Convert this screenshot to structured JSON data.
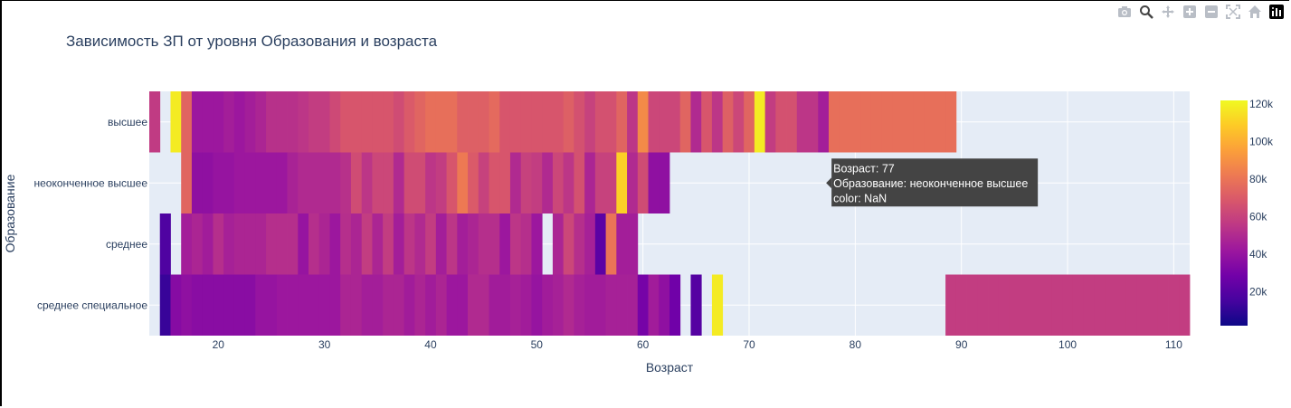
{
  "modebar": {
    "buttons": [
      "camera-icon",
      "zoom-icon",
      "pan-icon",
      "zoom-in-icon",
      "zoom-out-icon",
      "autoscale-icon",
      "reset-axes-icon",
      "plotly-logo-icon"
    ]
  },
  "colors": {
    "plot_bg": "#e5ecf6",
    "text": "#2a3f5f",
    "tooltip_bg": "#444444",
    "colorscale": [
      "#0d0887",
      "#46039f",
      "#7201a8",
      "#9c179e",
      "#bd3786",
      "#d8576b",
      "#ed7953",
      "#fb9f3a",
      "#fdca26",
      "#f0f921"
    ]
  },
  "chart_data": {
    "type": "heatmap",
    "title": "Зависимость ЗП от уровня Образования и возраста",
    "xlabel": "Возраст",
    "ylabel": "Образование",
    "x_ticks": [
      20,
      30,
      40,
      50,
      60,
      70,
      80,
      90,
      100,
      110
    ],
    "xlim": [
      13.5,
      111.5
    ],
    "categories": [
      "высшее",
      "неоконченное высшее",
      "среднее",
      "среднее специальное"
    ],
    "colorbar": {
      "range": [
        2000,
        122000
      ],
      "ticks": [
        20000,
        40000,
        60000,
        80000,
        100000,
        120000
      ],
      "tick_labels": [
        "20k",
        "40k",
        "60k",
        "80k",
        "100k",
        "120k"
      ]
    },
    "grid": true,
    "rows": [
      {
        "name": "высшее",
        "cells": [
          [
            14,
            57000
          ],
          [
            15,
            null
          ],
          [
            16,
            118000
          ],
          [
            17,
            74000
          ],
          [
            18,
            42000
          ],
          [
            19,
            42000
          ],
          [
            20,
            42000
          ],
          [
            21,
            45000
          ],
          [
            22,
            42000
          ],
          [
            23,
            45000
          ],
          [
            24,
            48000
          ],
          [
            25,
            53000
          ],
          [
            26,
            53000
          ],
          [
            27,
            53000
          ],
          [
            28,
            55000
          ],
          [
            29,
            58000
          ],
          [
            30,
            58000
          ],
          [
            31,
            63000
          ],
          [
            32,
            68000
          ],
          [
            33,
            68000
          ],
          [
            34,
            68000
          ],
          [
            35,
            68000
          ],
          [
            36,
            68000
          ],
          [
            37,
            64000
          ],
          [
            38,
            70000
          ],
          [
            39,
            74000
          ],
          [
            40,
            78000
          ],
          [
            41,
            78000
          ],
          [
            42,
            78000
          ],
          [
            43,
            72000
          ],
          [
            44,
            72000
          ],
          [
            45,
            72000
          ],
          [
            46,
            76000
          ],
          [
            47,
            68000
          ],
          [
            48,
            68000
          ],
          [
            49,
            68000
          ],
          [
            50,
            68000
          ],
          [
            51,
            68000
          ],
          [
            52,
            68000
          ],
          [
            53,
            72000
          ],
          [
            54,
            66000
          ],
          [
            55,
            60000
          ],
          [
            56,
            66000
          ],
          [
            57,
            66000
          ],
          [
            58,
            74000
          ],
          [
            59,
            55000
          ],
          [
            60,
            88000
          ],
          [
            61,
            62000
          ],
          [
            62,
            62000
          ],
          [
            63,
            62000
          ],
          [
            64,
            74000
          ],
          [
            65,
            50000
          ],
          [
            66,
            68000
          ],
          [
            67,
            55000
          ],
          [
            68,
            72000
          ],
          [
            69,
            62000
          ],
          [
            70,
            74000
          ],
          [
            71,
            118000
          ],
          [
            72,
            58000
          ],
          [
            73,
            66000
          ],
          [
            74,
            66000
          ],
          [
            75,
            55000
          ],
          [
            76,
            55000
          ],
          [
            77,
            45000
          ],
          [
            78,
            78000
          ],
          [
            79,
            78000
          ],
          [
            80,
            78000
          ],
          [
            81,
            78000
          ],
          [
            82,
            78000
          ],
          [
            83,
            78000
          ],
          [
            84,
            78000
          ],
          [
            85,
            78000
          ],
          [
            86,
            78000
          ],
          [
            87,
            78000
          ],
          [
            88,
            78000
          ],
          [
            89,
            78000
          ]
        ]
      },
      {
        "name": "неоконченное высшее",
        "cells": [
          [
            17,
            74000
          ],
          [
            18,
            38000
          ],
          [
            19,
            38000
          ],
          [
            20,
            40000
          ],
          [
            21,
            40000
          ],
          [
            22,
            42000
          ],
          [
            23,
            42000
          ],
          [
            24,
            42000
          ],
          [
            25,
            42000
          ],
          [
            26,
            42000
          ],
          [
            27,
            47000
          ],
          [
            28,
            50000
          ],
          [
            29,
            50000
          ],
          [
            30,
            50000
          ],
          [
            31,
            50000
          ],
          [
            32,
            53000
          ],
          [
            33,
            64000
          ],
          [
            34,
            55000
          ],
          [
            35,
            62000
          ],
          [
            36,
            62000
          ],
          [
            37,
            50000
          ],
          [
            38,
            64000
          ],
          [
            39,
            64000
          ],
          [
            40,
            55000
          ],
          [
            41,
            58000
          ],
          [
            42,
            68000
          ],
          [
            43,
            82000
          ],
          [
            44,
            70000
          ],
          [
            45,
            60000
          ],
          [
            46,
            68000
          ],
          [
            47,
            68000
          ],
          [
            48,
            50000
          ],
          [
            49,
            60000
          ],
          [
            50,
            58000
          ],
          [
            51,
            50000
          ],
          [
            52,
            62000
          ],
          [
            53,
            55000
          ],
          [
            54,
            66000
          ],
          [
            55,
            48000
          ],
          [
            56,
            60000
          ],
          [
            57,
            60000
          ],
          [
            58,
            110000
          ],
          [
            59,
            50000
          ],
          [
            60,
            64000
          ],
          [
            61,
            38000
          ],
          [
            62,
            38000
          ]
        ]
      },
      {
        "name": "среднее",
        "cells": [
          [
            15,
            18000
          ],
          [
            16,
            null
          ],
          [
            17,
            45000
          ],
          [
            18,
            48000
          ],
          [
            19,
            44000
          ],
          [
            20,
            52000
          ],
          [
            21,
            46000
          ],
          [
            22,
            48000
          ],
          [
            23,
            48000
          ],
          [
            24,
            48000
          ],
          [
            25,
            52000
          ],
          [
            26,
            52000
          ],
          [
            27,
            52000
          ],
          [
            28,
            40000
          ],
          [
            29,
            52000
          ],
          [
            30,
            48000
          ],
          [
            31,
            42000
          ],
          [
            32,
            52000
          ],
          [
            33,
            48000
          ],
          [
            34,
            58000
          ],
          [
            35,
            48000
          ],
          [
            36,
            58000
          ],
          [
            37,
            45000
          ],
          [
            38,
            55000
          ],
          [
            39,
            50000
          ],
          [
            40,
            58000
          ],
          [
            41,
            45000
          ],
          [
            42,
            55000
          ],
          [
            43,
            45000
          ],
          [
            44,
            48000
          ],
          [
            45,
            52000
          ],
          [
            46,
            52000
          ],
          [
            47,
            42000
          ],
          [
            48,
            55000
          ],
          [
            49,
            52000
          ],
          [
            50,
            42000
          ],
          [
            51,
            null
          ],
          [
            52,
            48000
          ],
          [
            53,
            62000
          ],
          [
            54,
            52000
          ],
          [
            55,
            46000
          ],
          [
            56,
            22000
          ],
          [
            57,
            80000
          ],
          [
            58,
            45000
          ],
          [
            59,
            45000
          ]
        ]
      },
      {
        "name": "среднее специальное",
        "cells": [
          [
            15,
            12000
          ],
          [
            16,
            35000
          ],
          [
            17,
            38000
          ],
          [
            18,
            36000
          ],
          [
            19,
            36000
          ],
          [
            20,
            36000
          ],
          [
            21,
            36000
          ],
          [
            22,
            36000
          ],
          [
            23,
            36000
          ],
          [
            24,
            40000
          ],
          [
            25,
            40000
          ],
          [
            26,
            42000
          ],
          [
            27,
            42000
          ],
          [
            28,
            42000
          ],
          [
            29,
            42000
          ],
          [
            30,
            42000
          ],
          [
            31,
            42000
          ],
          [
            32,
            48000
          ],
          [
            33,
            48000
          ],
          [
            34,
            45000
          ],
          [
            35,
            45000
          ],
          [
            36,
            48000
          ],
          [
            37,
            48000
          ],
          [
            38,
            44000
          ],
          [
            39,
            48000
          ],
          [
            40,
            44000
          ],
          [
            41,
            48000
          ],
          [
            42,
            42000
          ],
          [
            43,
            42000
          ],
          [
            44,
            50000
          ],
          [
            45,
            50000
          ],
          [
            46,
            44000
          ],
          [
            47,
            44000
          ],
          [
            48,
            46000
          ],
          [
            49,
            44000
          ],
          [
            50,
            40000
          ],
          [
            51,
            44000
          ],
          [
            52,
            46000
          ],
          [
            53,
            50000
          ],
          [
            54,
            46000
          ],
          [
            55,
            44000
          ],
          [
            56,
            44000
          ],
          [
            57,
            46000
          ],
          [
            58,
            46000
          ],
          [
            59,
            46000
          ],
          [
            60,
            30000
          ],
          [
            61,
            44000
          ],
          [
            62,
            38000
          ],
          [
            63,
            28000
          ],
          [
            64,
            null
          ],
          [
            65,
            20000
          ],
          [
            66,
            null
          ],
          [
            67,
            118000
          ],
          [
            89,
            58000
          ],
          [
            90,
            58000
          ],
          [
            91,
            58000
          ],
          [
            92,
            58000
          ],
          [
            93,
            58000
          ],
          [
            94,
            58000
          ],
          [
            95,
            58000
          ],
          [
            96,
            58000
          ],
          [
            97,
            58000
          ],
          [
            98,
            58000
          ],
          [
            99,
            58000
          ],
          [
            100,
            58000
          ],
          [
            101,
            58000
          ],
          [
            102,
            58000
          ],
          [
            103,
            58000
          ],
          [
            104,
            58000
          ],
          [
            105,
            58000
          ],
          [
            106,
            58000
          ],
          [
            107,
            58000
          ],
          [
            108,
            58000
          ],
          [
            109,
            58000
          ],
          [
            110,
            58000
          ],
          [
            111,
            58000
          ]
        ]
      }
    ],
    "hover": {
      "lines": [
        "Возраст: 77",
        "Образование: неоконченное высшее",
        "color: NaN"
      ],
      "x": 77,
      "category": "неоконченное высшее"
    }
  }
}
